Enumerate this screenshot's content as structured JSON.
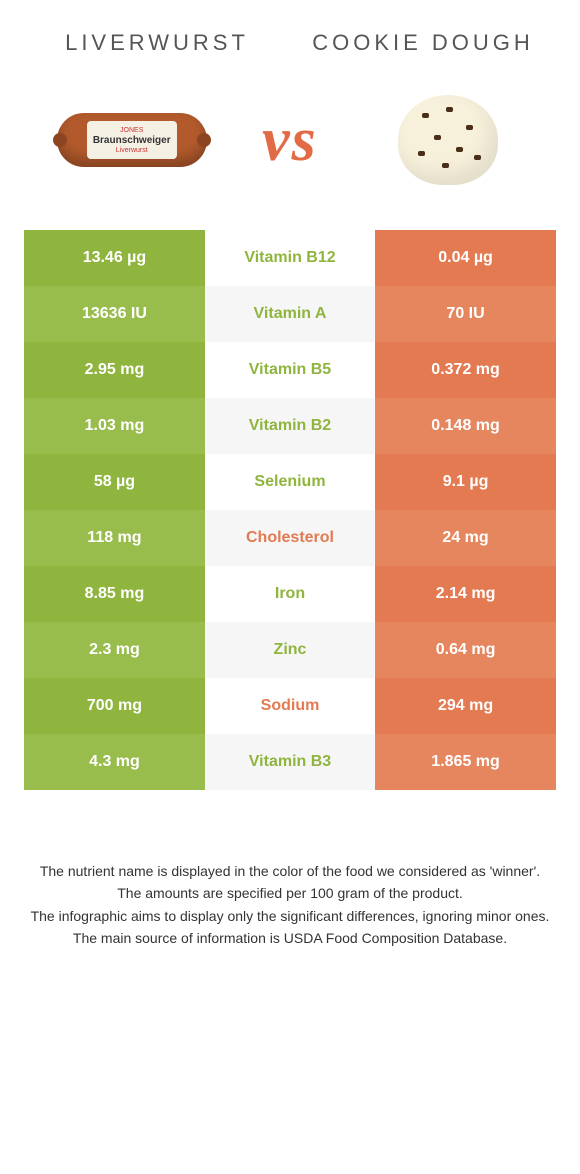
{
  "colors": {
    "left_food": "#8fb53f",
    "right_food": "#e37a52",
    "left_alt": "#99bd4d",
    "right_alt": "#e6865f",
    "mid_bg_a": "#ffffff",
    "mid_bg_b": "#f6f6f6"
  },
  "header": {
    "left_title": "Liverwurst",
    "right_title": "Cookie dough",
    "vs": "vs"
  },
  "illustration": {
    "sausage_label_top": "JONES",
    "sausage_label_main": "Braunschweiger",
    "sausage_label_sub": "Liverwurst"
  },
  "rows": [
    {
      "left": "13.46 µg",
      "mid": "Vitamin B12",
      "right": "0.04 µg",
      "winner": "left"
    },
    {
      "left": "13636 IU",
      "mid": "Vitamin A",
      "right": "70 IU",
      "winner": "left"
    },
    {
      "left": "2.95 mg",
      "mid": "Vitamin B5",
      "right": "0.372 mg",
      "winner": "left"
    },
    {
      "left": "1.03 mg",
      "mid": "Vitamin B2",
      "right": "0.148 mg",
      "winner": "left"
    },
    {
      "left": "58 µg",
      "mid": "Selenium",
      "right": "9.1 µg",
      "winner": "left"
    },
    {
      "left": "118 mg",
      "mid": "Cholesterol",
      "right": "24 mg",
      "winner": "right"
    },
    {
      "left": "8.85 mg",
      "mid": "Iron",
      "right": "2.14 mg",
      "winner": "left"
    },
    {
      "left": "2.3 mg",
      "mid": "Zinc",
      "right": "0.64 mg",
      "winner": "left"
    },
    {
      "left": "700 mg",
      "mid": "Sodium",
      "right": "294 mg",
      "winner": "right"
    },
    {
      "left": "4.3 mg",
      "mid": "Vitamin B3",
      "right": "1.865 mg",
      "winner": "left"
    }
  ],
  "footer": {
    "line1": "The nutrient name is displayed in the color of the food we considered as 'winner'.",
    "line2": "The amounts are specified per 100 gram of the product.",
    "line3": "The infographic aims to display only the significant differences, ignoring minor ones.",
    "line4": "The main source of information is USDA Food Composition Database."
  }
}
